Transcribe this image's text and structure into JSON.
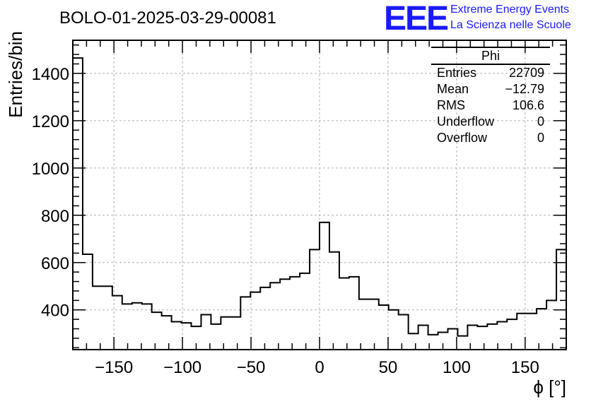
{
  "header": {
    "title": "BOLO-01-2025-03-29-00081",
    "logo_mark": "EEE",
    "logo_line1": "Extreme Energy Events",
    "logo_line2": "La Scienza nelle Scuole",
    "logo_color": "#1a1aff"
  },
  "stats": {
    "title": "Phi",
    "rows": [
      {
        "label": "Entries",
        "value": "22709"
      },
      {
        "label": "Mean",
        "value": "−12.79"
      },
      {
        "label": "RMS",
        "value": "106.6"
      },
      {
        "label": "Underflow",
        "value": "0"
      },
      {
        "label": "Overflow",
        "value": "0"
      }
    ]
  },
  "chart_data": {
    "type": "histogram",
    "title": "BOLO-01-2025-03-29-00081",
    "xlabel": "ϕ [°]",
    "ylabel": "Entries/bin",
    "xlim": [
      -180,
      180
    ],
    "ylim": [
      232,
      1540
    ],
    "bin_width": 7.2,
    "x_ticks": [
      -150,
      -100,
      -50,
      0,
      50,
      100,
      150
    ],
    "x_tick_labels": [
      "−150",
      "−100",
      "−50",
      "0",
      "50",
      "100",
      "150"
    ],
    "y_ticks": [
      400,
      600,
      800,
      1000,
      1200,
      1400
    ],
    "y_tick_labels": [
      "400",
      "600",
      "800",
      "1000",
      "1200",
      "1400"
    ],
    "grid": true,
    "legend": "stats box top-right",
    "values": [
      1465,
      635,
      500,
      500,
      460,
      425,
      430,
      425,
      390,
      375,
      350,
      345,
      330,
      380,
      340,
      370,
      370,
      455,
      475,
      495,
      515,
      530,
      540,
      555,
      655,
      770,
      645,
      535,
      540,
      445,
      445,
      420,
      400,
      380,
      300,
      335,
      295,
      305,
      320,
      290,
      335,
      330,
      340,
      350,
      360,
      385,
      385,
      405,
      440,
      655
    ]
  }
}
